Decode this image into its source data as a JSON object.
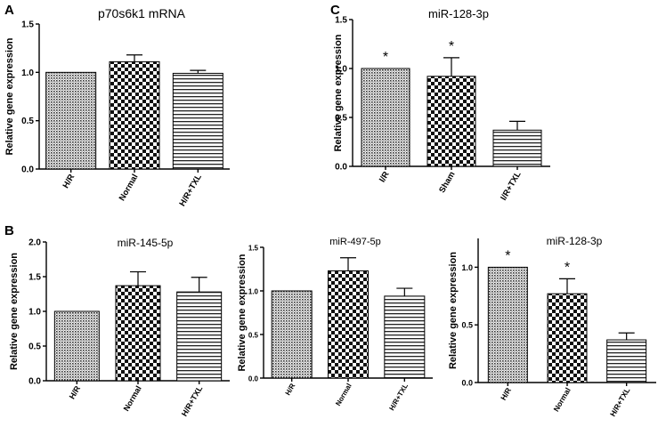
{
  "panel_letters": {
    "A": "A",
    "B": "B",
    "C": "C"
  },
  "chart_data": [
    {
      "id": "A",
      "type": "bar",
      "title": "p70s6k1 mRNA",
      "ylabel": "Relative gene expression",
      "categories": [
        "H/R",
        "Normal",
        "H/R+TXL"
      ],
      "values": [
        1.0,
        1.11,
        0.99
      ],
      "errors": [
        0.0,
        0.07,
        0.03
      ],
      "significance": [
        "",
        "",
        ""
      ],
      "ylim": [
        0,
        1.5
      ],
      "yticks": [
        "0.0",
        "0.5",
        "1.0",
        "1.5"
      ],
      "patterns": [
        "dots",
        "checker",
        "hlines"
      ]
    },
    {
      "id": "C",
      "type": "bar",
      "title": "miR-128-3p",
      "ylabel": "Relative gene expression",
      "categories": [
        "I/R",
        "Sham",
        "I/R+TXL"
      ],
      "values": [
        1.0,
        0.92,
        0.37
      ],
      "errors": [
        0.0,
        0.19,
        0.09
      ],
      "significance": [
        "*",
        "*",
        ""
      ],
      "ylim": [
        0,
        1.5
      ],
      "yticks": [
        "0.0",
        "0.5",
        "1.0",
        "1.5"
      ],
      "patterns": [
        "dots",
        "checker",
        "hlines"
      ]
    },
    {
      "id": "B1",
      "type": "bar",
      "title": "miR-145-5p",
      "ylabel": "Relative gene expression",
      "categories": [
        "H/R",
        "Normal",
        "H/R+TXL"
      ],
      "values": [
        1.0,
        1.37,
        1.28
      ],
      "errors": [
        0.0,
        0.2,
        0.21
      ],
      "significance": [
        "",
        "",
        ""
      ],
      "ylim": [
        0,
        2.0
      ],
      "yticks": [
        "0.0",
        "0.5",
        "1.0",
        "1.5",
        "2.0"
      ],
      "patterns": [
        "dots",
        "checker",
        "hlines"
      ]
    },
    {
      "id": "B2",
      "type": "bar",
      "title": "miR-497-5p",
      "ylabel": "Relative gene expression",
      "categories": [
        "H/R",
        "Normal",
        "H/R+TXL"
      ],
      "values": [
        1.0,
        1.23,
        0.94
      ],
      "errors": [
        0.0,
        0.15,
        0.09
      ],
      "significance": [
        "",
        "",
        ""
      ],
      "ylim": [
        0,
        1.5
      ],
      "yticks": [
        "0.0",
        "0.5",
        "1.0",
        "1.5"
      ],
      "patterns": [
        "dots",
        "checker",
        "hlines"
      ]
    },
    {
      "id": "B3",
      "type": "bar",
      "title": "miR-128-3p",
      "ylabel": "Relative gene expression",
      "categories": [
        "H/R",
        "Normal",
        "H/R+TXL"
      ],
      "values": [
        1.0,
        0.77,
        0.37
      ],
      "errors": [
        0.0,
        0.13,
        0.06
      ],
      "significance": [
        "*",
        "*",
        ""
      ],
      "ylim": [
        0,
        1.25
      ],
      "yticks": [
        "0.0",
        "0.5",
        "1.0"
      ],
      "patterns": [
        "dots",
        "checker",
        "hlines"
      ]
    }
  ]
}
